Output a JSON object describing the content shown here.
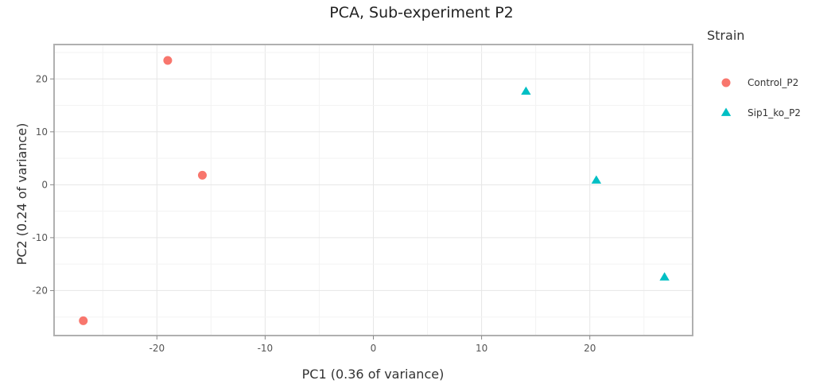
{
  "chart_data": {
    "type": "scatter",
    "title": "PCA, Sub-experiment P2",
    "xlabel": "PC1 (0.36 of variance)",
    "ylabel": "PC2 (0.24 of variance)",
    "xlim": [
      -29.5,
      29.5
    ],
    "ylim": [
      -28.5,
      26.5
    ],
    "xticks": [
      -20,
      -10,
      0,
      10,
      20
    ],
    "yticks": [
      -20,
      -10,
      0,
      10,
      20
    ],
    "grid": true,
    "legend": {
      "title": "Strain",
      "position": "right"
    },
    "series": [
      {
        "name": "Control_P2",
        "color": "#F8766D",
        "marker": "circle",
        "points": [
          {
            "x": -19.0,
            "y": 23.5
          },
          {
            "x": -15.8,
            "y": 1.8
          },
          {
            "x": -26.8,
            "y": -25.7
          }
        ]
      },
      {
        "name": "Sip1_ko_P2",
        "color": "#00BFC4",
        "marker": "triangle",
        "points": [
          {
            "x": 14.1,
            "y": 17.6
          },
          {
            "x": 20.6,
            "y": 0.8
          },
          {
            "x": 26.9,
            "y": -17.5
          }
        ]
      }
    ]
  }
}
